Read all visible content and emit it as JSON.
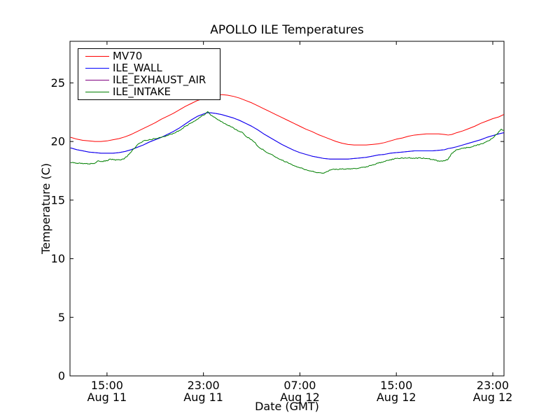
{
  "figure": {
    "background": "#ffffff",
    "axis_color": "#000000"
  },
  "chart_data": {
    "type": "line",
    "title": "APOLLO ILE Temperatures",
    "xlabel": "Date (GMT)",
    "ylabel": "Temperature (C)",
    "grid": false,
    "legend_position": "upper left",
    "x_unit": "hours since Aug 11 00:00 GMT",
    "xlim": [
      11.93,
      47.93
    ],
    "ylim": [
      0,
      28.55
    ],
    "xticks": [
      {
        "t": 15,
        "label": [
          "15:00",
          "Aug 11"
        ]
      },
      {
        "t": 23,
        "label": [
          "23:00",
          "Aug 11"
        ]
      },
      {
        "t": 31,
        "label": [
          "07:00",
          "Aug 12"
        ]
      },
      {
        "t": 39,
        "label": [
          "15:00",
          "Aug 12"
        ]
      },
      {
        "t": 47,
        "label": [
          "23:00",
          "Aug 12"
        ]
      }
    ],
    "yticks": [
      {
        "v": 0,
        "label": "0"
      },
      {
        "v": 5,
        "label": "5"
      },
      {
        "v": 10,
        "label": "10"
      },
      {
        "v": 15,
        "label": "15"
      },
      {
        "v": 20,
        "label": "20"
      },
      {
        "v": 25,
        "label": "25"
      }
    ],
    "draw_order": [
      "MV70",
      "ILE_EXHAUST_AIR",
      "ILE_WALL",
      "ILE_INTAKE"
    ],
    "series": [
      {
        "name": "MV70",
        "color": "#ff0000",
        "points": [
          [
            12,
            20.35
          ],
          [
            12.5,
            20.2
          ],
          [
            13,
            20.1
          ],
          [
            13.5,
            20.05
          ],
          [
            14,
            20.0
          ],
          [
            14.5,
            20.0
          ],
          [
            15,
            20.05
          ],
          [
            15.5,
            20.15
          ],
          [
            16,
            20.25
          ],
          [
            16.5,
            20.4
          ],
          [
            17,
            20.6
          ],
          [
            17.5,
            20.85
          ],
          [
            18,
            21.1
          ],
          [
            18.5,
            21.35
          ],
          [
            19,
            21.6
          ],
          [
            19.5,
            21.9
          ],
          [
            20,
            22.15
          ],
          [
            20.5,
            22.4
          ],
          [
            21,
            22.7
          ],
          [
            21.5,
            23.0
          ],
          [
            22,
            23.25
          ],
          [
            22.5,
            23.5
          ],
          [
            23,
            23.65
          ],
          [
            23.5,
            23.8
          ],
          [
            24,
            23.9
          ],
          [
            24.5,
            24.0
          ],
          [
            25,
            23.95
          ],
          [
            25.5,
            23.85
          ],
          [
            26,
            23.7
          ],
          [
            26.5,
            23.5
          ],
          [
            27,
            23.3
          ],
          [
            27.5,
            23.05
          ],
          [
            28,
            22.8
          ],
          [
            28.5,
            22.55
          ],
          [
            29,
            22.3
          ],
          [
            29.5,
            22.05
          ],
          [
            30,
            21.8
          ],
          [
            30.5,
            21.55
          ],
          [
            31,
            21.3
          ],
          [
            31.5,
            21.05
          ],
          [
            32,
            20.85
          ],
          [
            32.5,
            20.6
          ],
          [
            33,
            20.4
          ],
          [
            33.5,
            20.2
          ],
          [
            34,
            20.0
          ],
          [
            34.5,
            19.85
          ],
          [
            35,
            19.75
          ],
          [
            35.5,
            19.7
          ],
          [
            36.5,
            19.7
          ],
          [
            37,
            19.75
          ],
          [
            37.5,
            19.8
          ],
          [
            38,
            19.9
          ],
          [
            38.5,
            20.05
          ],
          [
            39,
            20.2
          ],
          [
            39.5,
            20.3
          ],
          [
            40,
            20.45
          ],
          [
            40.5,
            20.55
          ],
          [
            41,
            20.6
          ],
          [
            41.5,
            20.65
          ],
          [
            42.5,
            20.65
          ],
          [
            43,
            20.6
          ],
          [
            43.3,
            20.55
          ],
          [
            43.6,
            20.6
          ],
          [
            44,
            20.75
          ],
          [
            44.5,
            20.9
          ],
          [
            45,
            21.1
          ],
          [
            45.5,
            21.3
          ],
          [
            46,
            21.55
          ],
          [
            46.5,
            21.75
          ],
          [
            47,
            21.95
          ],
          [
            47.5,
            22.1
          ],
          [
            47.9,
            22.3
          ]
        ]
      },
      {
        "name": "ILE_WALL",
        "color": "#0000ff",
        "points": [
          [
            12,
            19.45
          ],
          [
            12.5,
            19.3
          ],
          [
            13,
            19.2
          ],
          [
            13.5,
            19.1
          ],
          [
            14,
            19.05
          ],
          [
            14.5,
            19.0
          ],
          [
            15.5,
            19.0
          ],
          [
            16,
            19.05
          ],
          [
            16.5,
            19.15
          ],
          [
            17,
            19.3
          ],
          [
            17.5,
            19.5
          ],
          [
            18,
            19.7
          ],
          [
            18.5,
            19.95
          ],
          [
            19,
            20.15
          ],
          [
            19.5,
            20.35
          ],
          [
            20,
            20.6
          ],
          [
            20.5,
            20.85
          ],
          [
            21,
            21.15
          ],
          [
            21.5,
            21.5
          ],
          [
            22,
            21.85
          ],
          [
            22.5,
            22.15
          ],
          [
            23,
            22.35
          ],
          [
            23.3,
            22.45
          ],
          [
            23.6,
            22.45
          ],
          [
            24,
            22.4
          ],
          [
            24.5,
            22.3
          ],
          [
            25,
            22.15
          ],
          [
            25.5,
            22.0
          ],
          [
            26,
            21.8
          ],
          [
            26.5,
            21.55
          ],
          [
            27,
            21.3
          ],
          [
            27.5,
            21.0
          ],
          [
            28,
            20.65
          ],
          [
            28.5,
            20.35
          ],
          [
            29,
            20.05
          ],
          [
            29.5,
            19.75
          ],
          [
            30,
            19.5
          ],
          [
            30.5,
            19.25
          ],
          [
            31,
            19.05
          ],
          [
            31.5,
            18.9
          ],
          [
            32,
            18.75
          ],
          [
            32.5,
            18.65
          ],
          [
            33,
            18.55
          ],
          [
            33.5,
            18.5
          ],
          [
            35,
            18.5
          ],
          [
            35.5,
            18.55
          ],
          [
            36,
            18.6
          ],
          [
            36.5,
            18.65
          ],
          [
            37,
            18.75
          ],
          [
            37.5,
            18.85
          ],
          [
            38,
            18.9
          ],
          [
            38.5,
            19.0
          ],
          [
            39,
            19.05
          ],
          [
            39.5,
            19.1
          ],
          [
            40,
            19.15
          ],
          [
            40.5,
            19.2
          ],
          [
            42,
            19.2
          ],
          [
            42.5,
            19.25
          ],
          [
            43,
            19.3
          ],
          [
            43.3,
            19.4
          ],
          [
            43.6,
            19.45
          ],
          [
            44,
            19.55
          ],
          [
            44.5,
            19.7
          ],
          [
            45,
            19.85
          ],
          [
            45.5,
            20.0
          ],
          [
            46,
            20.15
          ],
          [
            46.5,
            20.35
          ],
          [
            47,
            20.5
          ],
          [
            47.5,
            20.65
          ],
          [
            47.9,
            20.75
          ]
        ]
      },
      {
        "name": "ILE_EXHAUST_AIR",
        "color": "#800080",
        "points_same_as": "ILE_WALL",
        "note": "line is hidden behind ILE_WALL in the plot"
      },
      {
        "name": "ILE_INTAKE",
        "color": "#007f00",
        "noise": 0.045,
        "points": [
          [
            12,
            18.2
          ],
          [
            12.5,
            18.15
          ],
          [
            13,
            18.1
          ],
          [
            13.5,
            18.1
          ],
          [
            14,
            18.15
          ],
          [
            14.3,
            18.35
          ],
          [
            14.6,
            18.3
          ],
          [
            15,
            18.35
          ],
          [
            15.3,
            18.5
          ],
          [
            15.7,
            18.4
          ],
          [
            16,
            18.45
          ],
          [
            16.4,
            18.5
          ],
          [
            17,
            19.1
          ],
          [
            17.5,
            19.7
          ],
          [
            18,
            20.05
          ],
          [
            18.3,
            20.1
          ],
          [
            19,
            20.25
          ],
          [
            19.5,
            20.35
          ],
          [
            20,
            20.5
          ],
          [
            20.5,
            20.7
          ],
          [
            21,
            20.95
          ],
          [
            21.5,
            21.3
          ],
          [
            22,
            21.6
          ],
          [
            22.5,
            21.9
          ],
          [
            23,
            22.25
          ],
          [
            23.2,
            22.4
          ],
          [
            23.35,
            22.55
          ],
          [
            23.6,
            22.25
          ],
          [
            24,
            22.0
          ],
          [
            24.5,
            21.7
          ],
          [
            25,
            21.4
          ],
          [
            25.5,
            21.15
          ],
          [
            26,
            20.85
          ],
          [
            26.3,
            20.7
          ],
          [
            26.5,
            20.45
          ],
          [
            27,
            20.15
          ],
          [
            27.3,
            19.9
          ],
          [
            27.5,
            19.6
          ],
          [
            28,
            19.25
          ],
          [
            28.5,
            18.95
          ],
          [
            29,
            18.65
          ],
          [
            29.5,
            18.4
          ],
          [
            30,
            18.2
          ],
          [
            30.5,
            17.95
          ],
          [
            31,
            17.75
          ],
          [
            31.5,
            17.6
          ],
          [
            32,
            17.45
          ],
          [
            32.5,
            17.35
          ],
          [
            33,
            17.3
          ],
          [
            33.3,
            17.45
          ],
          [
            33.6,
            17.6
          ],
          [
            34,
            17.65
          ],
          [
            35,
            17.65
          ],
          [
            35.5,
            17.7
          ],
          [
            36,
            17.75
          ],
          [
            36.5,
            17.85
          ],
          [
            37,
            18.0
          ],
          [
            37.5,
            18.15
          ],
          [
            38,
            18.3
          ],
          [
            38.5,
            18.45
          ],
          [
            39,
            18.55
          ],
          [
            39.5,
            18.6
          ],
          [
            40,
            18.6
          ],
          [
            40.5,
            18.55
          ],
          [
            41,
            18.6
          ],
          [
            41.5,
            18.55
          ],
          [
            42,
            18.45
          ],
          [
            42.5,
            18.35
          ],
          [
            43,
            18.35
          ],
          [
            43.3,
            18.5
          ],
          [
            43.6,
            19.0
          ],
          [
            44,
            19.3
          ],
          [
            44.3,
            19.35
          ],
          [
            44.6,
            19.45
          ],
          [
            45,
            19.5
          ],
          [
            45.3,
            19.55
          ],
          [
            45.6,
            19.65
          ],
          [
            46,
            19.8
          ],
          [
            46.3,
            19.9
          ],
          [
            46.6,
            20.05
          ],
          [
            47,
            20.3
          ],
          [
            47.3,
            20.6
          ],
          [
            47.5,
            20.85
          ],
          [
            47.7,
            21.05
          ],
          [
            47.9,
            20.95
          ]
        ]
      }
    ]
  }
}
